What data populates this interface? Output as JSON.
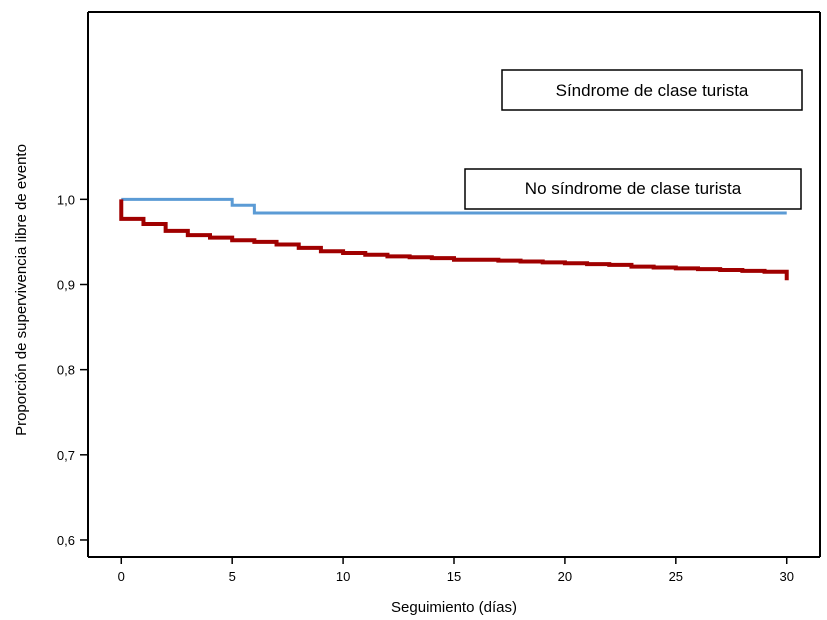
{
  "chart_data": {
    "type": "line",
    "title": "",
    "xlabel": "Seguimiento (días)",
    "ylabel": "Proporción de supervivencia libre de evento",
    "xlim": [
      -1.5,
      31.5
    ],
    "ylim": [
      0.58,
      1.22
    ],
    "x_ticks": [
      0,
      5,
      10,
      15,
      20,
      25,
      30
    ],
    "x_tick_labels": [
      "0",
      "5",
      "10",
      "15",
      "20",
      "25",
      "30"
    ],
    "y_ticks": [
      0.6,
      0.7,
      0.8,
      0.9,
      1.0
    ],
    "y_tick_labels": [
      "0,6",
      "0,7",
      "0,8",
      "0,9",
      "1,0"
    ],
    "grid": false,
    "series": [
      {
        "name": "Síndrome de clase turista",
        "color": "#5b9bd5",
        "step": true,
        "x": [
          0,
          5,
          6,
          30
        ],
        "y": [
          1.0,
          0.993,
          0.984,
          0.984
        ]
      },
      {
        "name": "No síndrome de clase turista",
        "color": "#a00000",
        "step": true,
        "x": [
          0,
          1,
          2,
          3,
          4,
          5,
          6,
          7,
          8,
          9,
          10,
          11,
          12,
          13,
          14,
          15,
          16,
          17,
          18,
          19,
          20,
          21,
          22,
          23,
          24,
          25,
          26,
          27,
          28,
          29,
          30,
          30
        ],
        "y": [
          0.977,
          0.971,
          0.963,
          0.958,
          0.955,
          0.952,
          0.95,
          0.947,
          0.943,
          0.939,
          0.937,
          0.935,
          0.933,
          0.932,
          0.931,
          0.929,
          0.929,
          0.928,
          0.927,
          0.926,
          0.925,
          0.924,
          0.923,
          0.921,
          0.92,
          0.919,
          0.918,
          0.917,
          0.916,
          0.915,
          0.915,
          0.905
        ]
      }
    ],
    "legend": [
      {
        "label": "Síndrome de clase turista",
        "placement": "upper-right"
      },
      {
        "label": "No síndrome de clase turista",
        "placement": "right"
      }
    ]
  }
}
